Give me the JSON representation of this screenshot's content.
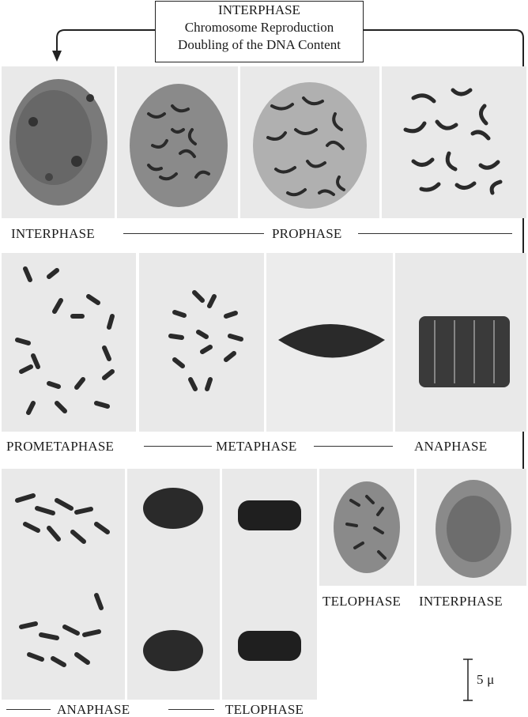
{
  "header": {
    "title": "INTERPHASE",
    "line2": "Chromosome Reproduction",
    "line3": "Doubling of the DNA Content"
  },
  "labels": {
    "row1_interphase": "INTERPHASE",
    "row1_prophase": "PROPHASE",
    "row2_prometaphase": "PROMETAPHASE",
    "row2_metaphase": "METAPHASE",
    "row2_anaphase": "ANAPHASE",
    "row3_telophase": "TELOPHASE",
    "row3_interphase": "INTERPHASE",
    "bottom_anaphase": "ANAPHASE",
    "bottom_telophase": "TELOPHASE"
  },
  "scale_bar": {
    "label": "5 μ"
  },
  "colors": {
    "background": "#ffffff",
    "panel": "#e9e9e9",
    "stain": "#2a2a2a",
    "ink": "#1b1b1b"
  }
}
